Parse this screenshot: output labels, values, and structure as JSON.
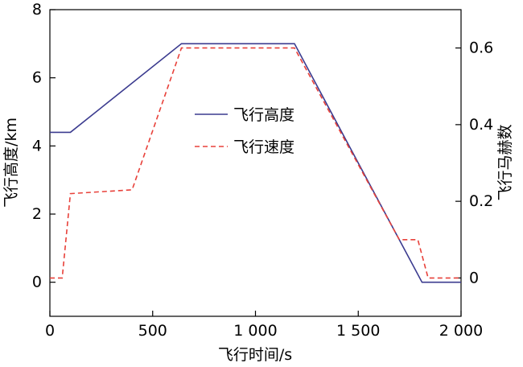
{
  "chart_data": {
    "type": "line",
    "xlabel": "飞行时间/s",
    "ylabel_left": "飞行高度/km",
    "ylabel_right": "飞行马赫数",
    "xlim": [
      0,
      2000
    ],
    "ylim_left": [
      -1,
      8
    ],
    "ylim_right": [
      -0.1,
      0.7
    ],
    "x_ticks": [
      0,
      500,
      1000,
      1500,
      2000
    ],
    "x_tick_labels": [
      "0",
      "500",
      "1 000",
      "1 500",
      "2 000"
    ],
    "y_left_ticks": [
      0,
      2,
      4,
      6,
      8
    ],
    "y_left_tick_labels": [
      "0",
      "2",
      "4",
      "6",
      "8"
    ],
    "y_right_ticks": [
      0,
      0.2,
      0.4,
      0.6
    ],
    "y_right_tick_labels": [
      "0",
      "0.2",
      "0.4",
      "0.6"
    ],
    "grid": false,
    "legend_position": "center",
    "series": [
      {
        "name": "飞行高度",
        "axis": "left",
        "color": "#3b3b8f",
        "style": "solid",
        "x": [
          0,
          100,
          640,
          1190,
          1810,
          2000
        ],
        "y": [
          4.4,
          4.4,
          7.0,
          7.0,
          0.0,
          0.0
        ]
      },
      {
        "name": "飞行速度",
        "axis": "right",
        "color": "#e8413a",
        "style": "dashed",
        "x": [
          0,
          60,
          100,
          400,
          640,
          1190,
          1700,
          1790,
          1840,
          2000
        ],
        "y": [
          0.0,
          0.0,
          0.22,
          0.23,
          0.6,
          0.6,
          0.1,
          0.1,
          0.0,
          0.0
        ]
      }
    ]
  }
}
